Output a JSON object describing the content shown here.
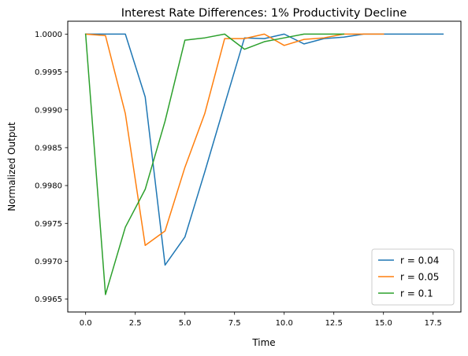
{
  "chart_data": {
    "type": "line",
    "title": "Interest Rate Differences: 1% Productivity Decline",
    "xlabel": "Time",
    "ylabel": "Normalized Output",
    "xlim": [
      -0.9,
      18.9
    ],
    "ylim": [
      0.99633,
      1.00017
    ],
    "x_ticks": [
      0.0,
      2.5,
      5.0,
      7.5,
      10.0,
      12.5,
      15.0,
      17.5
    ],
    "x_tick_labels": [
      "0.0",
      "2.5",
      "5.0",
      "7.5",
      "10.0",
      "12.5",
      "15.0",
      "17.5"
    ],
    "y_ticks": [
      0.9965,
      0.997,
      0.9975,
      0.998,
      0.9985,
      0.999,
      0.9995,
      1.0
    ],
    "y_tick_labels": [
      "0.9965",
      "0.9970",
      "0.9975",
      "0.9980",
      "0.9985",
      "0.9990",
      "0.9995",
      "1.0000"
    ],
    "grid": false,
    "legend_position": "lower-right",
    "series": [
      {
        "name": "r = 0.04",
        "color": "#1f77b4",
        "x": [
          0,
          1,
          2,
          3,
          4,
          5,
          6,
          7,
          8,
          9,
          10,
          11,
          12,
          13,
          14,
          15,
          16,
          17,
          18
        ],
        "values": [
          1.0,
          1.0,
          1.0,
          0.99917,
          0.99695,
          0.99732,
          0.99818,
          0.99907,
          0.99995,
          0.99994,
          1.0,
          0.99987,
          0.99994,
          0.99996,
          1.0,
          1.0,
          1.0,
          1.0,
          1.0
        ]
      },
      {
        "name": "r = 0.05",
        "color": "#ff7f0e",
        "x": [
          0,
          1,
          2,
          3,
          4,
          5,
          6,
          7,
          8,
          9,
          10,
          11,
          12,
          13,
          14,
          15
        ],
        "values": [
          1.0,
          0.99998,
          0.99895,
          0.99721,
          0.9974,
          0.99824,
          0.99895,
          0.99994,
          0.99994,
          1.0,
          0.99985,
          0.99993,
          0.99995,
          1.0,
          1.0,
          1.0
        ]
      },
      {
        "name": "r = 0.1",
        "color": "#2ca02c",
        "x": [
          0,
          1,
          2,
          3,
          4,
          5,
          6,
          7,
          8,
          9,
          10,
          11,
          12,
          13
        ],
        "values": [
          1.0,
          0.99656,
          0.99745,
          0.99795,
          0.99885,
          0.99992,
          0.99995,
          1.0,
          0.9998,
          0.9999,
          0.99995,
          1.0,
          1.0,
          1.0
        ]
      }
    ]
  }
}
